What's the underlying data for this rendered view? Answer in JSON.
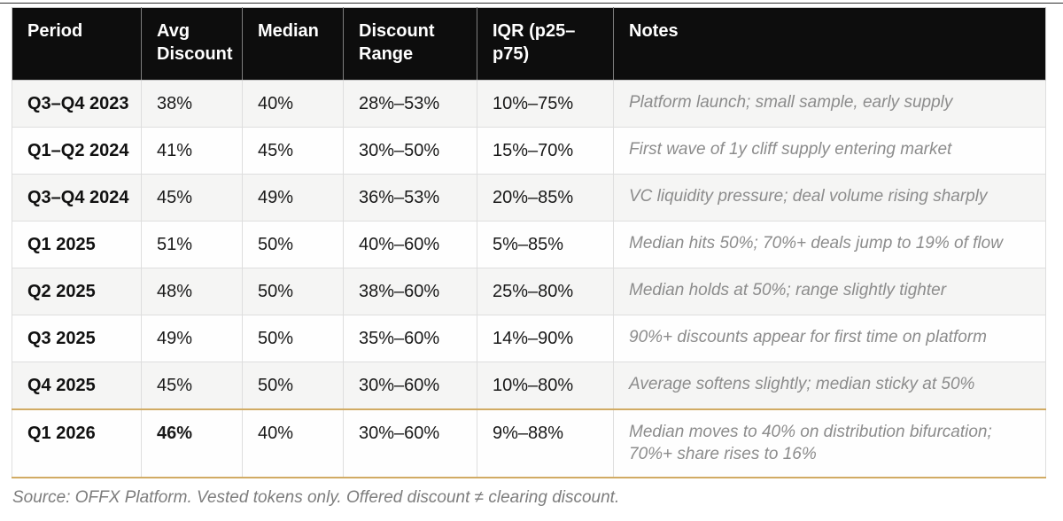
{
  "table": {
    "columns": [
      "Period",
      "Avg Discount",
      "Median",
      "Discount Range",
      "IQR (p25–p75)",
      "Notes"
    ],
    "rows": [
      {
        "period": "Q3–Q4 2023",
        "avg": "38%",
        "median": "40%",
        "range": "28%–53%",
        "iqr": "10%–75%",
        "notes": "Platform launch; small sample, early supply",
        "highlight": false,
        "avg_bold": false
      },
      {
        "period": "Q1–Q2 2024",
        "avg": "41%",
        "median": "45%",
        "range": "30%–50%",
        "iqr": "15%–70%",
        "notes": "First wave of 1y cliff supply entering market",
        "highlight": false,
        "avg_bold": false
      },
      {
        "period": "Q3–Q4 2024",
        "avg": "45%",
        "median": "49%",
        "range": "36%–53%",
        "iqr": "20%–85%",
        "notes": "VC liquidity pressure; deal volume rising sharply",
        "highlight": false,
        "avg_bold": false
      },
      {
        "period": "Q1 2025",
        "avg": "51%",
        "median": "50%",
        "range": "40%–60%",
        "iqr": "5%–85%",
        "notes": "Median hits 50%; 70%+ deals jump to 19% of flow",
        "highlight": false,
        "avg_bold": false
      },
      {
        "period": "Q2 2025",
        "avg": "48%",
        "median": "50%",
        "range": "38%–60%",
        "iqr": "25%–80%",
        "notes": "Median holds at 50%; range slightly tighter",
        "highlight": false,
        "avg_bold": false
      },
      {
        "period": "Q3 2025",
        "avg": "49%",
        "median": "50%",
        "range": "35%–60%",
        "iqr": "14%–90%",
        "notes": "90%+ discounts appear for first time on platform",
        "highlight": false,
        "avg_bold": false
      },
      {
        "period": "Q4 2025",
        "avg": "45%",
        "median": "50%",
        "range": "30%–60%",
        "iqr": "10%–80%",
        "notes": "Average softens slightly; median sticky at 50%",
        "highlight": false,
        "avg_bold": false
      },
      {
        "period": "Q1 2026",
        "avg": "46%",
        "median": "40%",
        "range": "30%–60%",
        "iqr": "9%–88%",
        "notes": "Median moves to 40% on distribution bifurcation; 70%+ share rises to 16%",
        "highlight": true,
        "avg_bold": true
      }
    ]
  },
  "footer": {
    "source_note": "Source: OFFX Platform. Vested tokens only. Offered discount ≠ clearing discount."
  },
  "colors": {
    "header_bg": "#0d0d0d",
    "header_text": "#ffffff",
    "stripe_odd": "#f5f5f4",
    "stripe_even": "#fefefe",
    "grid_border": "#dedede",
    "highlight_gold": "#d1ab64",
    "notes_text": "#8c8c8c",
    "body_text": "#191919"
  },
  "chart_data": {
    "type": "table",
    "title": "",
    "columns": [
      "Period",
      "Avg Discount",
      "Median",
      "Discount Range",
      "IQR (p25–p75)",
      "Notes"
    ],
    "rows": [
      [
        "Q3–Q4 2023",
        "38%",
        "40%",
        "28%–53%",
        "10%–75%",
        "Platform launch; small sample, early supply"
      ],
      [
        "Q1–Q2 2024",
        "41%",
        "45%",
        "30%–50%",
        "15%–70%",
        "First wave of 1y cliff supply entering market"
      ],
      [
        "Q3–Q4 2024",
        "45%",
        "49%",
        "36%–53%",
        "20%–85%",
        "VC liquidity pressure; deal volume rising sharply"
      ],
      [
        "Q1 2025",
        "51%",
        "50%",
        "40%–60%",
        "5%–85%",
        "Median hits 50%; 70%+ deals jump to 19% of flow"
      ],
      [
        "Q2 2025",
        "48%",
        "50%",
        "38%–60%",
        "25%–80%",
        "Median holds at 50%; range slightly tighter"
      ],
      [
        "Q3 2025",
        "49%",
        "50%",
        "35%–60%",
        "14%–90%",
        "90%+ discounts appear for first time on platform"
      ],
      [
        "Q4 2025",
        "45%",
        "50%",
        "30%–60%",
        "10%–80%",
        "Average softens slightly; median sticky at 50%"
      ],
      [
        "Q1 2026",
        "46%",
        "40%",
        "30%–60%",
        "9%–88%",
        "Median moves to 40% on distribution bifurcation; 70%+ share rises to 16%"
      ]
    ],
    "highlighted_row": "Q1 2026",
    "source_note": "Source: OFFX Platform. Vested tokens only. Offered discount ≠ clearing discount.",
    "layout_hints": {
      "header_style": "black-background",
      "striped": true,
      "last_row_gold_rule": true
    }
  }
}
